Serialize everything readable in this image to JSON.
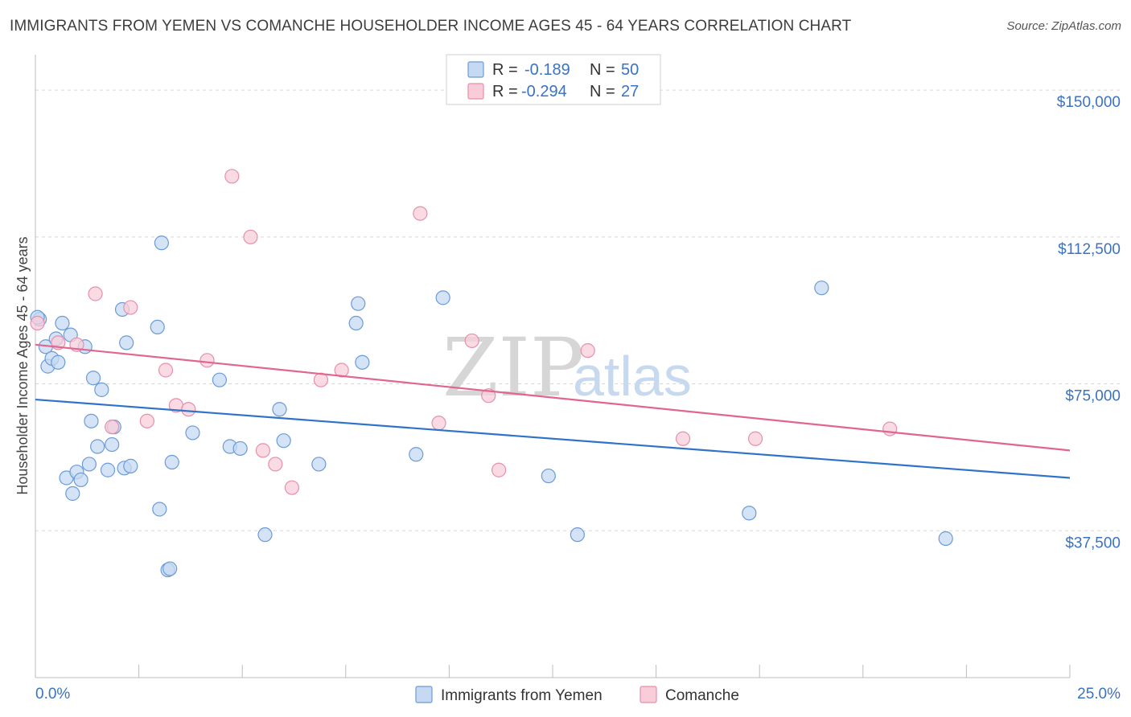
{
  "header": {
    "title": "IMMIGRANTS FROM YEMEN VS COMANCHE HOUSEHOLDER INCOME AGES 45 - 64 YEARS CORRELATION CHART",
    "source": "Source: ZipAtlas.com"
  },
  "colors": {
    "blue_fill": "#c5d9f2",
    "blue_stroke": "#6b9bd8",
    "blue_line": "#2f73c9",
    "pink_fill": "#f8cdd9",
    "pink_stroke": "#e590ac",
    "pink_line": "#e06590",
    "grid": "#d8d8d8",
    "tick_text": "#3a72c4"
  },
  "watermark": {
    "zip": "ZIP",
    "atlas": "atlas"
  },
  "legend": {
    "rows": [
      {
        "r_label": "R =",
        "r_value": "-0.189",
        "n_label": "N =",
        "n_value": "50"
      },
      {
        "r_label": "R =",
        "r_value": "-0.294",
        "n_label": "N =",
        "n_value": "27"
      }
    ]
  },
  "bottom_legend": {
    "items": [
      "Immigrants from Yemen",
      "Comanche"
    ]
  },
  "chart_data": {
    "type": "scatter",
    "title": "IMMIGRANTS FROM YEMEN VS COMANCHE HOUSEHOLDER INCOME AGES 45 - 64 YEARS CORRELATION CHART",
    "xlabel": "",
    "ylabel": "Householder Income Ages 45 - 64 years",
    "xlim": [
      0,
      25
    ],
    "ylim": [
      0,
      157000
    ],
    "x_tick_labels": [
      "0.0%",
      "25.0%"
    ],
    "y_ticks": [
      37500,
      75000,
      112500,
      150000
    ],
    "y_tick_labels": [
      "$37,500",
      "$75,000",
      "$112,500",
      "$150,000"
    ],
    "grid": true,
    "legend_position": "top-center",
    "series": [
      {
        "name": "Immigrants from Yemen",
        "r": -0.189,
        "n": 50,
        "trend": {
          "x": [
            0.0,
            25.0
          ],
          "y": [
            71000,
            51000
          ]
        },
        "points": [
          [
            0.1,
            91500
          ],
          [
            0.25,
            84500
          ],
          [
            0.3,
            79500
          ],
          [
            0.4,
            81500
          ],
          [
            0.5,
            86500
          ],
          [
            0.55,
            80500
          ],
          [
            0.65,
            90500
          ],
          [
            0.75,
            51000
          ],
          [
            0.85,
            87500
          ],
          [
            0.9,
            47000
          ],
          [
            1.0,
            52500
          ],
          [
            1.1,
            50500
          ],
          [
            1.2,
            84500
          ],
          [
            1.3,
            54500
          ],
          [
            1.35,
            65500
          ],
          [
            1.4,
            76500
          ],
          [
            1.5,
            59000
          ],
          [
            1.6,
            73500
          ],
          [
            1.75,
            53000
          ],
          [
            1.85,
            59500
          ],
          [
            1.9,
            64000
          ],
          [
            2.1,
            94000
          ],
          [
            2.15,
            53500
          ],
          [
            2.2,
            85500
          ],
          [
            2.3,
            54000
          ],
          [
            2.95,
            89500
          ],
          [
            3.0,
            43000
          ],
          [
            3.05,
            111000
          ],
          [
            3.2,
            27500
          ],
          [
            3.25,
            27800
          ],
          [
            3.3,
            55000
          ],
          [
            3.8,
            62500
          ],
          [
            4.45,
            76000
          ],
          [
            4.7,
            59000
          ],
          [
            4.95,
            58500
          ],
          [
            5.55,
            36500
          ],
          [
            5.9,
            68500
          ],
          [
            6.0,
            60500
          ],
          [
            6.85,
            54500
          ],
          [
            7.75,
            90500
          ],
          [
            7.8,
            95500
          ],
          [
            7.9,
            80500
          ],
          [
            9.2,
            57000
          ],
          [
            9.85,
            97000
          ],
          [
            12.4,
            51500
          ],
          [
            13.1,
            36500
          ],
          [
            17.25,
            42000
          ],
          [
            19.0,
            99500
          ],
          [
            22.0,
            35500
          ],
          [
            0.05,
            92000
          ]
        ]
      },
      {
        "name": "Comanche",
        "r": -0.294,
        "n": 27,
        "trend": {
          "x": [
            0.0,
            25.0
          ],
          "y": [
            85000,
            58000
          ]
        },
        "points": [
          [
            0.05,
            90500
          ],
          [
            0.55,
            85500
          ],
          [
            1.0,
            85000
          ],
          [
            1.45,
            98000
          ],
          [
            1.85,
            64000
          ],
          [
            2.3,
            94500
          ],
          [
            2.7,
            65500
          ],
          [
            3.15,
            78500
          ],
          [
            3.4,
            69500
          ],
          [
            3.7,
            68500
          ],
          [
            4.15,
            81000
          ],
          [
            4.75,
            128000
          ],
          [
            5.2,
            112500
          ],
          [
            5.5,
            58000
          ],
          [
            5.8,
            54500
          ],
          [
            6.2,
            48500
          ],
          [
            6.9,
            76000
          ],
          [
            7.4,
            78500
          ],
          [
            9.3,
            118500
          ],
          [
            9.75,
            65000
          ],
          [
            10.55,
            86000
          ],
          [
            10.95,
            72000
          ],
          [
            11.2,
            53000
          ],
          [
            13.35,
            83500
          ],
          [
            15.65,
            61000
          ],
          [
            17.4,
            61000
          ],
          [
            20.65,
            63500
          ]
        ]
      }
    ]
  }
}
